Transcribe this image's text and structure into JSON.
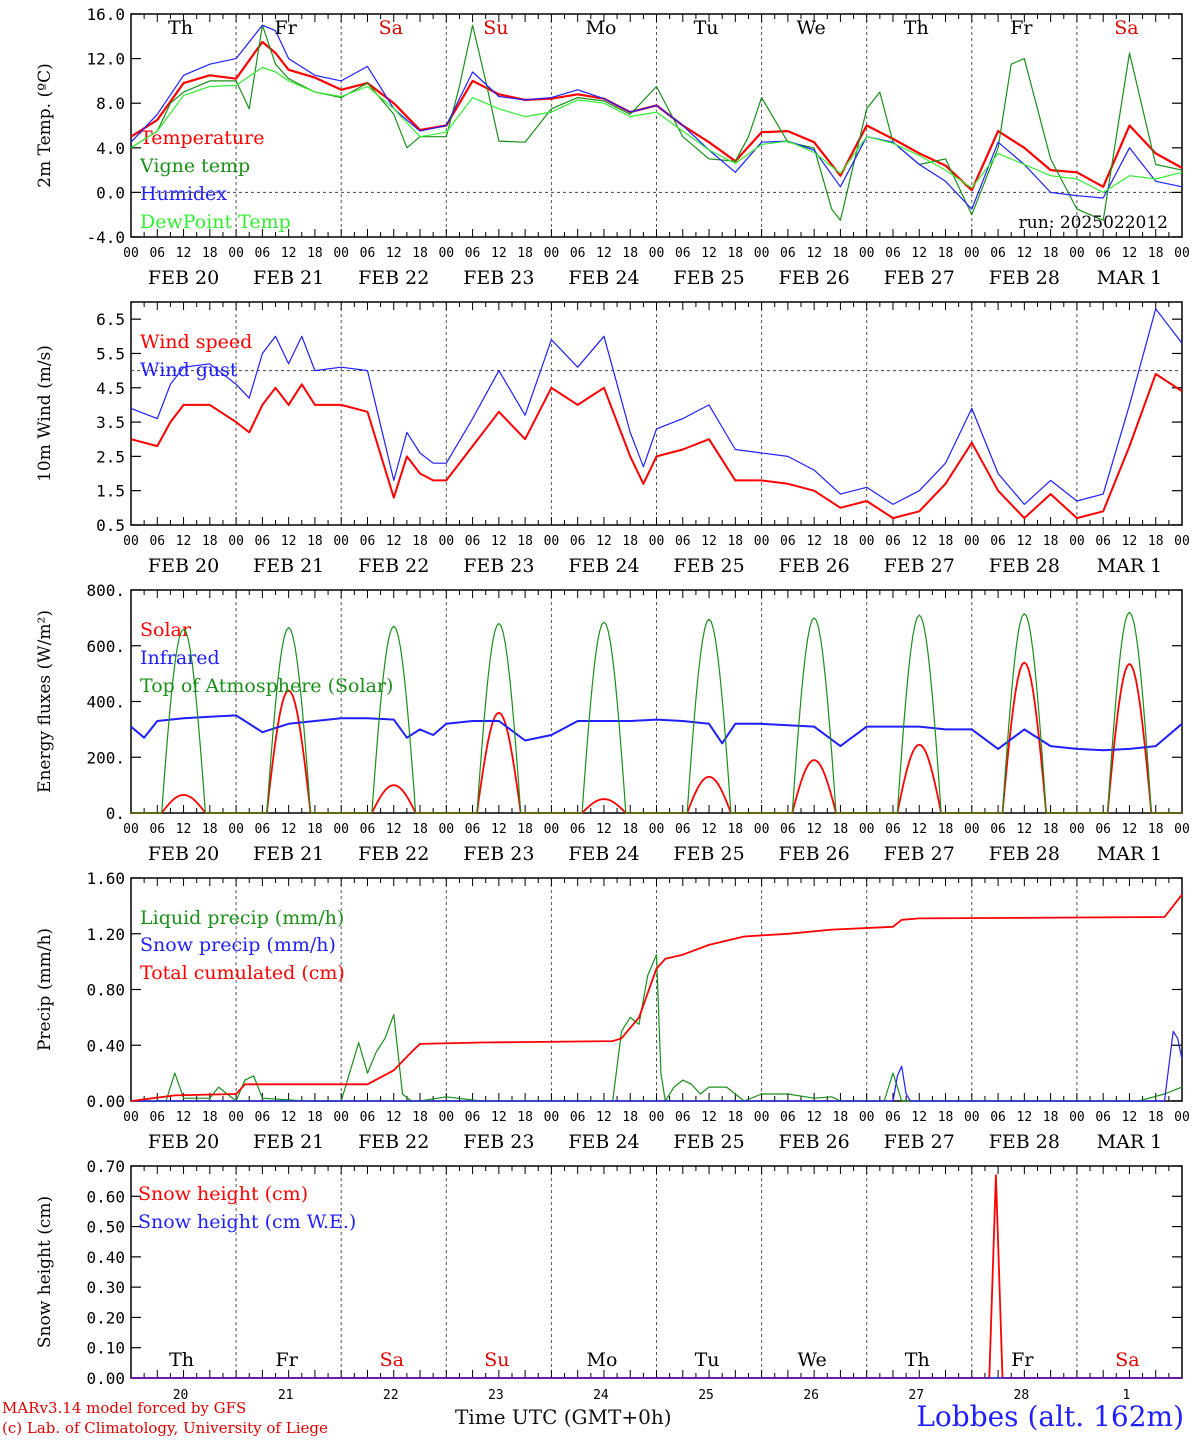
{
  "location": "Lobbes (alt. 162m)",
  "credit_line_1": "MARv3.14 model forced by GFS",
  "credit_line_2": "(c) Lab. of Climatology, University of Liege",
  "time_axis_label": "Time UTC (GMT+0h)",
  "run_label": "run: 2025022012",
  "hour_ticks": [
    "00",
    "06",
    "12",
    "18"
  ],
  "date_labels": [
    "FEB 20",
    "FEB 21",
    "FEB 22",
    "FEB 23",
    "FEB 24",
    "FEB 25",
    "FEB 26",
    "FEB 27",
    "FEB 28",
    "MAR  1"
  ],
  "weekdays": [
    {
      "label": "Th",
      "color": "#000000"
    },
    {
      "label": "Fr",
      "color": "#000000"
    },
    {
      "label": "Sa",
      "color": "#e00000"
    },
    {
      "label": "Su",
      "color": "#e00000"
    },
    {
      "label": "Mo",
      "color": "#000000"
    },
    {
      "label": "Tu",
      "color": "#000000"
    },
    {
      "label": "We",
      "color": "#000000"
    },
    {
      "label": "Th",
      "color": "#000000"
    },
    {
      "label": "Fr",
      "color": "#000000"
    },
    {
      "label": "Sa",
      "color": "#e00000"
    }
  ],
  "day_numbers": [
    "20",
    "21",
    "22",
    "23",
    "24",
    "25",
    "26",
    "27",
    "28",
    "1"
  ],
  "chart_data": [
    {
      "type": "line",
      "ylabel": "2m Temp. (ºC)",
      "ylim": [
        -4,
        16
      ],
      "ticks": [
        -4,
        0,
        4,
        8,
        12,
        16
      ],
      "tick_labels": [
        "-4.0",
        "0.0",
        "4.0",
        "8.0",
        "12.0",
        "16.0"
      ],
      "ref_line": 0,
      "series": [
        {
          "name": "Temperature",
          "color": "#ff0000",
          "width": 2.2,
          "x": [
            0,
            6,
            12,
            18,
            24,
            30,
            33,
            36,
            42,
            48,
            54,
            60,
            66,
            72,
            78,
            84,
            90,
            96,
            102,
            108,
            114,
            120,
            126,
            132,
            138,
            144,
            150,
            156,
            162,
            168,
            174,
            180,
            186,
            192,
            198,
            204,
            210,
            216,
            222,
            228,
            234,
            240
          ],
          "y": [
            5.0,
            6.5,
            9.8,
            10.5,
            10.2,
            13.5,
            12.5,
            11.0,
            10.3,
            9.2,
            9.8,
            8.0,
            5.6,
            6.0,
            10.0,
            8.8,
            8.3,
            8.4,
            8.8,
            8.4,
            7.2,
            7.8,
            6.0,
            4.5,
            2.8,
            5.4,
            5.5,
            4.5,
            1.5,
            6.0,
            4.8,
            3.5,
            2.4,
            0.2,
            5.5,
            4.0,
            2.0,
            1.8,
            0.5,
            6.0,
            3.5,
            2.2
          ]
        },
        {
          "name": "Vigne temp",
          "color": "#1a8f1a",
          "width": 1.2,
          "x": [
            0,
            6,
            9,
            12,
            18,
            24,
            27,
            30,
            33,
            36,
            42,
            48,
            54,
            60,
            63,
            66,
            72,
            75,
            78,
            81,
            84,
            90,
            96,
            102,
            108,
            114,
            120,
            126,
            132,
            138,
            141,
            144,
            150,
            156,
            160,
            162,
            168,
            171,
            174,
            180,
            186,
            192,
            198,
            201,
            204,
            210,
            216,
            222,
            225,
            228,
            234,
            240
          ],
          "y": [
            4.0,
            5.5,
            8.0,
            9.0,
            10.0,
            10.0,
            7.5,
            15.0,
            11.5,
            10.2,
            9.0,
            8.5,
            9.8,
            7.0,
            4.0,
            5.0,
            5.0,
            9.5,
            15.0,
            10.0,
            4.6,
            4.5,
            7.5,
            8.5,
            8.2,
            7.0,
            9.5,
            5.0,
            3.0,
            2.8,
            5.0,
            8.5,
            4.5,
            4.0,
            -1.5,
            -2.5,
            7.5,
            9.0,
            4.5,
            2.5,
            3.0,
            -2.0,
            4.0,
            11.5,
            12.0,
            3.0,
            -1.5,
            -2.5,
            5.0,
            12.5,
            2.5,
            2.0
          ]
        },
        {
          "name": "Humidex",
          "color": "#1f1fff",
          "width": 1.2,
          "x": [
            0,
            6,
            12,
            18,
            24,
            30,
            33,
            36,
            42,
            48,
            54,
            60,
            66,
            72,
            78,
            84,
            90,
            96,
            102,
            108,
            114,
            120,
            126,
            132,
            138,
            144,
            150,
            156,
            162,
            168,
            174,
            180,
            186,
            192,
            198,
            204,
            210,
            216,
            222,
            228,
            234,
            240
          ],
          "y": [
            4.5,
            7.0,
            10.5,
            11.5,
            12.0,
            15.0,
            14.5,
            12.0,
            10.5,
            10.0,
            11.3,
            7.5,
            5.5,
            6.0,
            10.8,
            8.6,
            8.3,
            8.5,
            9.2,
            8.4,
            7.2,
            7.8,
            6.0,
            3.8,
            1.8,
            4.5,
            4.6,
            3.8,
            0.5,
            5.0,
            4.5,
            2.5,
            1.0,
            -1.5,
            4.5,
            2.5,
            0.0,
            -0.3,
            -0.5,
            4.0,
            1.0,
            0.5
          ]
        },
        {
          "name": "DewPoint Temp",
          "color": "#33ee33",
          "width": 1.2,
          "x": [
            0,
            6,
            12,
            18,
            24,
            30,
            33,
            36,
            42,
            48,
            54,
            60,
            66,
            72,
            78,
            84,
            90,
            96,
            102,
            108,
            114,
            120,
            126,
            132,
            138,
            144,
            150,
            156,
            162,
            168,
            174,
            180,
            186,
            192,
            198,
            204,
            210,
            216,
            222,
            228,
            234,
            240
          ],
          "y": [
            4.0,
            5.5,
            8.7,
            9.5,
            9.6,
            11.2,
            10.8,
            10.0,
            9.0,
            8.6,
            9.5,
            7.5,
            5.0,
            5.4,
            8.5,
            7.5,
            6.8,
            7.2,
            8.3,
            8.0,
            6.8,
            7.2,
            5.5,
            3.8,
            2.6,
            4.3,
            4.6,
            3.6,
            1.7,
            5.0,
            4.4,
            3.3,
            2.0,
            0.4,
            3.5,
            2.5,
            1.5,
            1.2,
            0.0,
            1.5,
            1.2,
            1.8
          ]
        }
      ]
    },
    {
      "type": "line",
      "ylabel": "10m Wind (m/s)",
      "ylim": [
        0.5,
        7.0
      ],
      "ticks": [
        0.5,
        1.5,
        2.5,
        3.5,
        4.5,
        5.5,
        6.5
      ],
      "tick_labels": [
        "0.5",
        "1.5",
        "2.5",
        "3.5",
        "4.5",
        "5.5",
        "6.5"
      ],
      "ref_line": 5,
      "series": [
        {
          "name": "Wind speed",
          "color": "#ff0000",
          "width": 2,
          "x": [
            0,
            6,
            9,
            12,
            18,
            24,
            27,
            30,
            33,
            36,
            39,
            42,
            48,
            54,
            60,
            63,
            66,
            69,
            72,
            78,
            84,
            90,
            96,
            102,
            108,
            114,
            117,
            120,
            126,
            132,
            138,
            144,
            150,
            156,
            162,
            168,
            174,
            180,
            186,
            192,
            198,
            204,
            210,
            216,
            222,
            228,
            234,
            240
          ],
          "y": [
            3.0,
            2.8,
            3.5,
            4.0,
            4.0,
            3.5,
            3.2,
            4.0,
            4.5,
            4.0,
            4.6,
            4.0,
            4.0,
            3.8,
            1.3,
            2.5,
            2.0,
            1.8,
            1.8,
            2.8,
            3.8,
            3.0,
            4.5,
            4.0,
            4.5,
            2.5,
            1.7,
            2.5,
            2.7,
            3.0,
            1.8,
            1.8,
            1.7,
            1.5,
            1.0,
            1.2,
            0.7,
            0.9,
            1.7,
            2.9,
            1.5,
            0.7,
            1.4,
            0.7,
            0.9,
            2.8,
            4.9,
            4.4
          ]
        },
        {
          "name": "Wind gust",
          "color": "#1f1fff",
          "width": 1.2,
          "x": [
            0,
            6,
            9,
            12,
            18,
            24,
            27,
            30,
            33,
            36,
            39,
            42,
            48,
            54,
            60,
            63,
            66,
            69,
            72,
            78,
            84,
            90,
            96,
            102,
            108,
            114,
            117,
            120,
            126,
            132,
            138,
            144,
            150,
            156,
            162,
            168,
            174,
            180,
            186,
            192,
            198,
            204,
            210,
            216,
            222,
            228,
            234,
            240
          ],
          "y": [
            3.9,
            3.6,
            4.6,
            5.1,
            5.2,
            4.6,
            4.2,
            5.5,
            6.0,
            5.2,
            6.0,
            5.0,
            5.1,
            5.0,
            1.8,
            3.2,
            2.6,
            2.3,
            2.3,
            3.6,
            5.0,
            3.7,
            5.9,
            5.1,
            6.0,
            3.2,
            2.2,
            3.3,
            3.6,
            4.0,
            2.7,
            2.6,
            2.5,
            2.1,
            1.4,
            1.6,
            1.1,
            1.5,
            2.3,
            3.9,
            2.0,
            1.1,
            1.8,
            1.2,
            1.4,
            4.0,
            6.8,
            5.8
          ]
        }
      ]
    },
    {
      "type": "line",
      "ylabel": "Energy fluxes (W/m²)",
      "ylim": [
        0,
        800
      ],
      "ticks": [
        0,
        200,
        400,
        600,
        800
      ],
      "tick_labels": [
        "0.",
        "200.",
        "400.",
        "600.",
        "800."
      ],
      "series": [
        {
          "name": "Solar",
          "color": "#ff0000",
          "width": 1.8,
          "day_peaks": [
            65,
            440,
            100,
            360,
            50,
            130,
            190,
            245,
            540,
            535
          ]
        },
        {
          "name": "Infrared",
          "color": "#1f1fff",
          "width": 2,
          "x": [
            0,
            3,
            6,
            12,
            18,
            24,
            30,
            36,
            42,
            48,
            54,
            60,
            63,
            66,
            69,
            72,
            78,
            84,
            90,
            96,
            102,
            108,
            114,
            120,
            126,
            132,
            135,
            138,
            141,
            144,
            150,
            156,
            162,
            168,
            174,
            180,
            186,
            192,
            198,
            204,
            210,
            216,
            222,
            228,
            234,
            240
          ],
          "y": [
            310,
            270,
            330,
            340,
            345,
            350,
            290,
            320,
            330,
            340,
            340,
            335,
            270,
            300,
            280,
            320,
            330,
            330,
            260,
            280,
            330,
            330,
            330,
            335,
            330,
            320,
            250,
            320,
            320,
            320,
            315,
            310,
            240,
            310,
            310,
            310,
            300,
            300,
            230,
            300,
            240,
            230,
            225,
            230,
            240,
            320
          ]
        },
        {
          "name": "Top of Atmosphere (Solar)",
          "color": "#1a8f1a",
          "width": 1.2,
          "day_peaks": [
            660,
            665,
            670,
            680,
            685,
            695,
            700,
            710,
            715,
            720
          ]
        }
      ]
    },
    {
      "type": "line",
      "ylabel": "Precip (mm/h)",
      "ylim": [
        0,
        1.6
      ],
      "ticks": [
        0,
        0.4,
        0.8,
        1.2,
        1.6
      ],
      "tick_labels": [
        "0.00",
        "0.40",
        "0.80",
        "1.20",
        "1.60"
      ],
      "series": [
        {
          "name": "Liquid precip (mm/h)",
          "color": "#1a8f1a",
          "width": 1.2,
          "x": [
            0,
            8,
            10,
            12,
            18,
            20,
            24,
            26,
            28,
            30,
            40,
            48,
            52,
            54,
            56,
            58,
            60,
            62,
            64,
            66,
            72,
            80,
            96,
            110,
            112,
            114,
            116,
            118,
            120,
            121,
            122,
            124,
            126,
            128,
            130,
            132,
            136,
            140,
            144,
            150,
            156,
            160,
            162,
            168,
            172,
            174,
            176,
            180,
            190,
            230,
            236,
            240
          ],
          "y": [
            0,
            0,
            0.2,
            0.02,
            0.02,
            0.1,
            0.0,
            0.15,
            0.18,
            0.02,
            0,
            0,
            0.42,
            0.2,
            0.35,
            0.45,
            0.62,
            0.05,
            0,
            0,
            0.03,
            0,
            0,
            0,
            0.5,
            0.6,
            0.55,
            0.9,
            1.05,
            0.2,
            0.0,
            0.1,
            0.15,
            0.12,
            0.05,
            0.1,
            0.1,
            0.0,
            0.05,
            0.05,
            0.02,
            0.03,
            0,
            0,
            0,
            0.2,
            0.0,
            0.0,
            0,
            0,
            0.05,
            0.1
          ]
        },
        {
          "name": "Snow precip (mm/h)",
          "color": "#1f1fff",
          "width": 1.2,
          "x": [
            0,
            174,
            175,
            176,
            177,
            178,
            236,
            238,
            239,
            240
          ],
          "y": [
            0,
            0,
            0.18,
            0.25,
            0.05,
            0,
            0,
            0.5,
            0.45,
            0.3
          ]
        },
        {
          "name": "Total cumulated (cm)",
          "color": "#ff0000",
          "width": 1.8,
          "x": [
            0,
            10,
            24,
            26,
            54,
            60,
            64,
            66,
            80,
            110,
            112,
            116,
            120,
            122,
            126,
            132,
            140,
            150,
            160,
            174,
            176,
            180,
            236,
            240
          ],
          "y": [
            0,
            0.04,
            0.05,
            0.12,
            0.12,
            0.22,
            0.35,
            0.41,
            0.42,
            0.43,
            0.45,
            0.6,
            0.95,
            1.02,
            1.05,
            1.12,
            1.18,
            1.2,
            1.23,
            1.25,
            1.3,
            1.31,
            1.32,
            1.48
          ]
        }
      ]
    },
    {
      "type": "line",
      "ylabel": "Snow height (cm)",
      "ylim": [
        0,
        0.7
      ],
      "ticks": [
        0,
        0.1,
        0.2,
        0.3,
        0.4,
        0.5,
        0.6,
        0.7
      ],
      "tick_labels": [
        "0.00",
        "0.10",
        "0.20",
        "0.30",
        "0.40",
        "0.50",
        "0.60",
        "0.70"
      ],
      "series": [
        {
          "name": "Snow height (cm)",
          "color": "#ff0000",
          "width": 1.8,
          "x": [
            0,
            196,
            197.5,
            199,
            240
          ],
          "y": [
            0,
            0,
            0.67,
            0,
            0
          ]
        },
        {
          "name": "Snow height (cm W.E.)",
          "color": "#1f1fff",
          "width": 1.2,
          "x": [
            0,
            240
          ],
          "y": [
            0,
            0
          ]
        }
      ]
    }
  ]
}
